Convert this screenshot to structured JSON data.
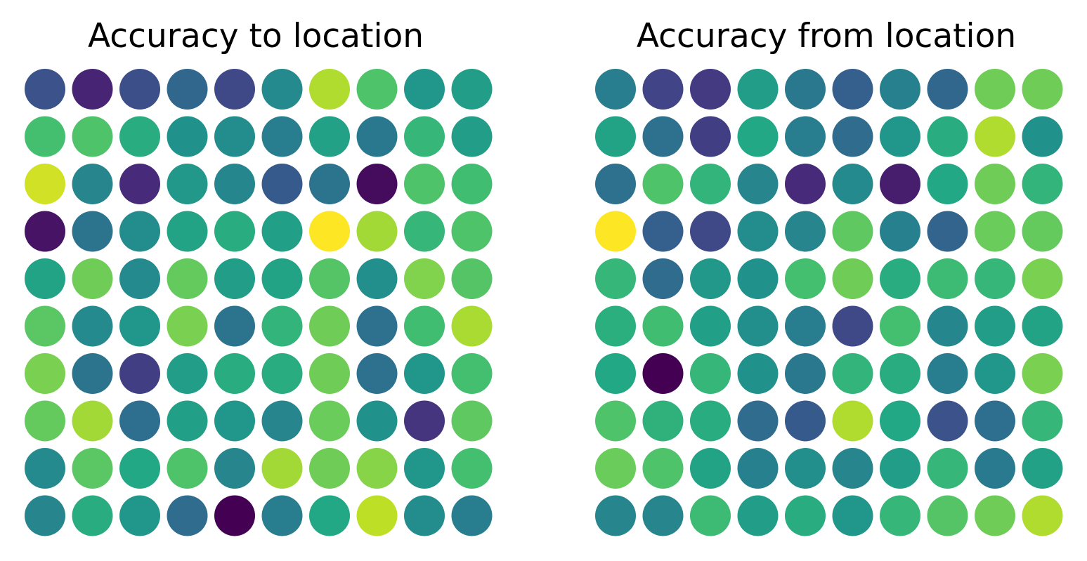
{
  "charts": [
    {
      "title": "Accuracy to location"
    },
    {
      "title": "Accuracy from location"
    }
  ],
  "chart_data": [
    {
      "type": "heatmap",
      "title": "Accuracy to location",
      "xlabel": "",
      "ylabel": "",
      "grid": false,
      "colormap": "viridis",
      "note_scale": "values are normalized 0-1 colormap positions (no colorbar shown)",
      "values": [
        [
          0.25,
          0.1,
          0.24,
          0.33,
          0.22,
          0.47,
          0.88,
          0.72,
          0.52,
          0.55
        ],
        [
          0.7,
          0.72,
          0.62,
          0.5,
          0.48,
          0.42,
          0.57,
          0.4,
          0.66,
          0.55
        ],
        [
          0.93,
          0.45,
          0.12,
          0.53,
          0.46,
          0.28,
          0.38,
          0.03,
          0.72,
          0.69
        ],
        [
          0.05,
          0.38,
          0.48,
          0.58,
          0.62,
          0.56,
          1.0,
          0.86,
          0.66,
          0.72
        ],
        [
          0.58,
          0.78,
          0.47,
          0.76,
          0.55,
          0.58,
          0.73,
          0.49,
          0.81,
          0.73
        ],
        [
          0.74,
          0.47,
          0.52,
          0.8,
          0.38,
          0.65,
          0.78,
          0.37,
          0.69,
          0.87
        ],
        [
          0.8,
          0.38,
          0.18,
          0.55,
          0.62,
          0.62,
          0.78,
          0.37,
          0.52,
          0.7
        ],
        [
          0.76,
          0.86,
          0.36,
          0.56,
          0.52,
          0.45,
          0.77,
          0.5,
          0.15,
          0.75
        ],
        [
          0.47,
          0.74,
          0.6,
          0.72,
          0.45,
          0.86,
          0.78,
          0.82,
          0.52,
          0.7
        ],
        [
          0.45,
          0.62,
          0.52,
          0.35,
          0.0,
          0.42,
          0.6,
          0.9,
          0.48,
          0.42
        ]
      ]
    },
    {
      "type": "heatmap",
      "title": "Accuracy from location",
      "xlabel": "",
      "ylabel": "",
      "grid": false,
      "colormap": "viridis",
      "note_scale": "values are normalized 0-1 colormap positions (no colorbar shown)",
      "values": [
        [
          0.42,
          0.2,
          0.17,
          0.55,
          0.4,
          0.3,
          0.43,
          0.33,
          0.78,
          0.78
        ],
        [
          0.58,
          0.37,
          0.18,
          0.6,
          0.42,
          0.35,
          0.52,
          0.62,
          0.88,
          0.5
        ],
        [
          0.37,
          0.72,
          0.65,
          0.45,
          0.12,
          0.47,
          0.08,
          0.6,
          0.78,
          0.65
        ],
        [
          1.0,
          0.3,
          0.22,
          0.48,
          0.45,
          0.75,
          0.43,
          0.32,
          0.77,
          0.76
        ],
        [
          0.66,
          0.35,
          0.53,
          0.5,
          0.7,
          0.78,
          0.62,
          0.68,
          0.66,
          0.8
        ],
        [
          0.63,
          0.69,
          0.56,
          0.49,
          0.42,
          0.22,
          0.7,
          0.46,
          0.55,
          0.58
        ],
        [
          0.6,
          0.0,
          0.66,
          0.5,
          0.4,
          0.65,
          0.62,
          0.42,
          0.52,
          0.8
        ],
        [
          0.72,
          0.64,
          0.62,
          0.35,
          0.28,
          0.88,
          0.6,
          0.25,
          0.36,
          0.66
        ],
        [
          0.77,
          0.72,
          0.58,
          0.43,
          0.49,
          0.45,
          0.55,
          0.66,
          0.41,
          0.57
        ],
        [
          0.45,
          0.45,
          0.68,
          0.55,
          0.62,
          0.52,
          0.66,
          0.73,
          0.78,
          0.88
        ]
      ]
    }
  ]
}
